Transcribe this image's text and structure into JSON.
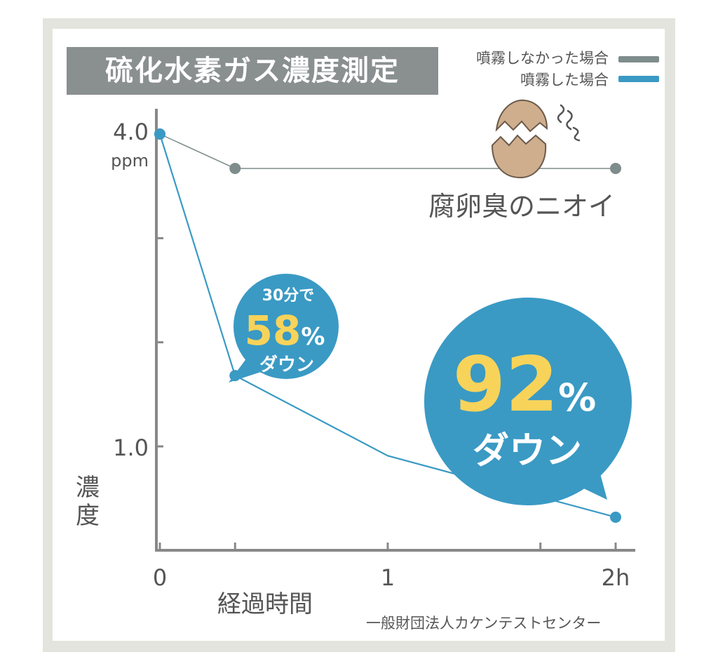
{
  "colors": {
    "no_spray": "#7f8c8c",
    "spray": "#3a9ac4",
    "bubble": "#3a9ac4",
    "highlight": "#f8d35a",
    "axis": "#888888",
    "title_bg": "#8a8f90"
  },
  "legend": {
    "no_spray": "噴霧しなかった場合",
    "spray": "噴霧した場合"
  },
  "annotation": "腐卵臭のニオイ",
  "callout_small": {
    "top": "30分で",
    "percent": "58",
    "unit": "%",
    "bottom": "ダウン"
  },
  "callout_big": {
    "percent": "92",
    "unit": "%",
    "bottom": "ダウン"
  },
  "source": "一般財団法人カケンテストセンター",
  "icons": {
    "egg": "cracked-egg-icon",
    "smell": "smell-icon"
  },
  "chart_data": {
    "type": "line",
    "title": "硫化水素ガス濃度測定",
    "xlabel": "経過時間",
    "ylabel": "濃度",
    "y_unit": "ppm",
    "x_tick_labels": [
      "0",
      "1",
      "2h"
    ],
    "y_tick_labels": [
      "1.0",
      "4.0"
    ],
    "x_ticks": [
      0,
      0.33,
      1,
      1.67,
      2
    ],
    "y_ticks": [
      1.0,
      2.0,
      3.0,
      4.0
    ],
    "xlim": [
      0,
      2.1
    ],
    "ylim": [
      0,
      4.0
    ],
    "series": [
      {
        "name": "噴霧しなかった場合",
        "x": [
          0,
          0.33,
          2
        ],
        "y": [
          4.0,
          3.67,
          3.67
        ],
        "color": "#7f8c8c"
      },
      {
        "name": "噴霧した場合",
        "x": [
          0,
          0.33,
          1,
          2
        ],
        "y": [
          4.0,
          1.68,
          0.91,
          0.32
        ],
        "color": "#3a9ac4"
      }
    ]
  }
}
